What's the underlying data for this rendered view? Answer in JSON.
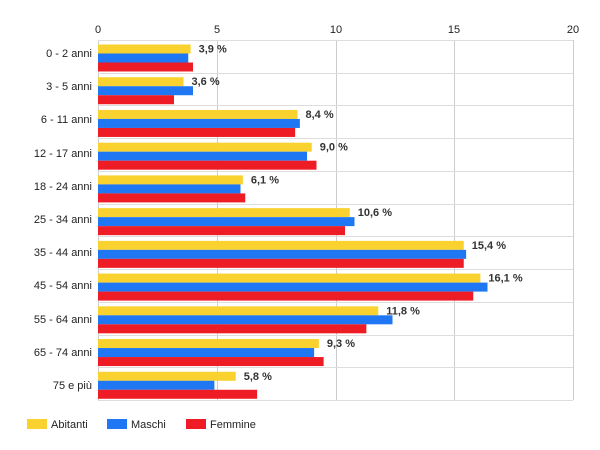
{
  "chart_data": {
    "type": "bar",
    "orientation": "horizontal",
    "categories": [
      "0 - 2 anni",
      "3 - 5 anni",
      "6 - 11 anni",
      "12 - 17 anni",
      "18 - 24 anni",
      "25 - 34 anni",
      "35 - 44 anni",
      "45 - 54 anni",
      "55 - 64 anni",
      "65 - 74 anni",
      "75 e più"
    ],
    "series": [
      {
        "name": "Abitanti",
        "color": "#f9d230",
        "values": [
          3.9,
          3.6,
          8.4,
          9.0,
          6.1,
          10.6,
          15.4,
          16.1,
          11.8,
          9.3,
          5.8
        ]
      },
      {
        "name": "Maschi",
        "color": "#1f77f4",
        "values": [
          3.8,
          4.0,
          8.5,
          8.8,
          6.0,
          10.8,
          15.5,
          16.4,
          12.4,
          9.1,
          4.9
        ]
      },
      {
        "name": "Femmine",
        "color": "#ee1c24",
        "values": [
          4.0,
          3.2,
          8.3,
          9.2,
          6.2,
          10.4,
          15.4,
          15.8,
          11.3,
          9.5,
          6.7
        ]
      }
    ],
    "data_labels": [
      "3,9 %",
      "3,6 %",
      "8,4 %",
      "9,0 %",
      "6,1 %",
      "10,6 %",
      "15,4 %",
      "16,1 %",
      "11,8 %",
      "9,3 %",
      "5,8 %"
    ],
    "x_ticks": [
      "0",
      "5",
      "10",
      "15",
      "20"
    ],
    "xlim": [
      0,
      20
    ],
    "grid": true,
    "legend_position": "bottom-left"
  }
}
